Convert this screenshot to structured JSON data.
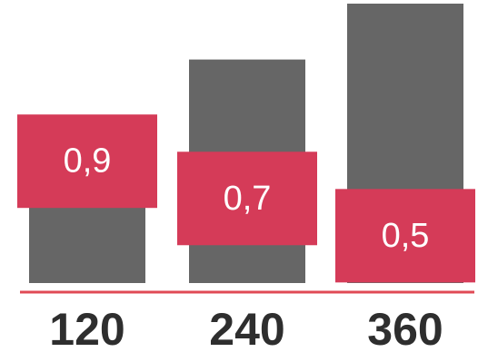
{
  "colors": {
    "bar": "#666666",
    "highlight": "#d53b58",
    "baseline": "#e04a55",
    "label_text": "#ffffff",
    "tick_text": "#2e2e2e"
  },
  "chart_data": {
    "type": "bar",
    "categories": [
      "120",
      "240",
      "360"
    ],
    "series": [
      {
        "values": [
          0.5,
          1.2,
          1.5
        ]
      }
    ],
    "highlights": [
      {
        "label": "0,9",
        "value": 0.9
      },
      {
        "label": "0,7",
        "value": 0.7
      },
      {
        "label": "0,5",
        "value": 0.5
      }
    ],
    "ylim": [
      0,
      1.5
    ],
    "grid": false,
    "title": "",
    "xlabel": "",
    "ylabel": ""
  }
}
